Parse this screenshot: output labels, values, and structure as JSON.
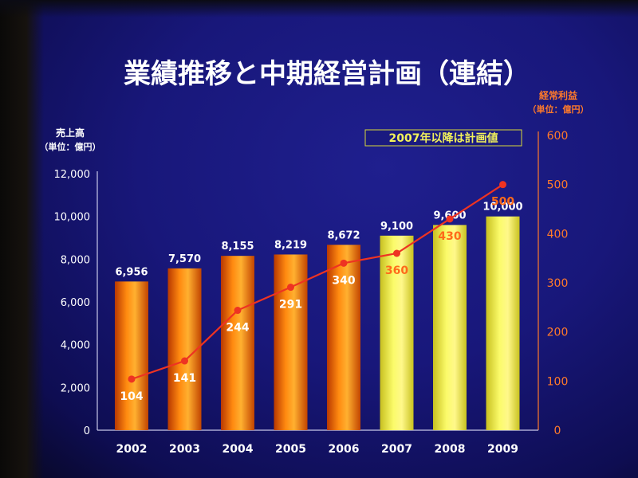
{
  "title": "業績推移と中期経営計画（連結）",
  "colors": {
    "background": "#1a1a80",
    "bar_actual": "#f07000",
    "bar_plan": "#f2f23a",
    "line": "#ee3322",
    "right_axis": "#ff7a2a",
    "note_text": "#f2f25a"
  },
  "chart_data": {
    "type": "bar",
    "categories": [
      "2002",
      "2003",
      "2004",
      "2005",
      "2006",
      "2007",
      "2008",
      "2009"
    ],
    "series": [
      {
        "name": "売上高",
        "type": "bar",
        "axis": "left",
        "values": [
          6956,
          7570,
          8155,
          8219,
          8672,
          9100,
          9600,
          10000
        ],
        "value_labels": [
          "6,956",
          "7,570",
          "8,155",
          "8,219",
          "8,672",
          "9,100",
          "9,600",
          "10,000"
        ],
        "plan_start_index": 5
      },
      {
        "name": "経常利益",
        "type": "line",
        "axis": "right",
        "values": [
          104,
          141,
          244,
          291,
          340,
          360,
          430,
          500
        ],
        "value_labels": [
          "104",
          "141",
          "244",
          "291",
          "340",
          "360",
          "430",
          "500"
        ]
      }
    ],
    "y_left": {
      "label": "売上高",
      "unit": "（単位：億円）",
      "ylim": [
        0,
        12000
      ],
      "ticks": [
        "0",
        "2,000",
        "4,000",
        "6,000",
        "8,000",
        "10,000",
        "12,000"
      ]
    },
    "y_right": {
      "label": "経常利益",
      "unit": "（単位：億円）",
      "ylim": [
        0,
        600
      ],
      "ticks": [
        "0",
        "100",
        "200",
        "300",
        "400",
        "500",
        "600"
      ]
    },
    "annotation": "2007年以降は計画値",
    "grid": false
  }
}
